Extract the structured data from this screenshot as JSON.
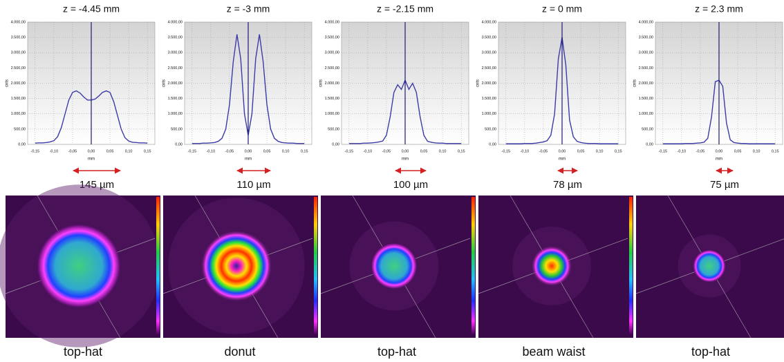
{
  "chart_data": [
    {
      "type": "line",
      "title": "z = -4.45 mm",
      "xlabel": "mm",
      "ylabel": "cnts",
      "color": "#3a3aa8",
      "grid": true,
      "annotations": [
        "145 µm",
        "top-hat"
      ],
      "x": [
        -0.15,
        -0.14,
        -0.13,
        -0.12,
        -0.11,
        -0.1,
        -0.09,
        -0.08,
        -0.07,
        -0.06,
        -0.05,
        -0.04,
        -0.03,
        -0.02,
        -0.01,
        0,
        0.01,
        0.02,
        0.03,
        0.04,
        0.05,
        0.06,
        0.07,
        0.08,
        0.09,
        0.1,
        0.11,
        0.12,
        0.13,
        0.14,
        0.15
      ],
      "values": [
        40,
        50,
        50,
        60,
        80,
        120,
        250,
        550,
        1000,
        1450,
        1700,
        1750,
        1680,
        1550,
        1450,
        1450,
        1480,
        1580,
        1700,
        1750,
        1700,
        1400,
        950,
        500,
        220,
        110,
        70,
        60,
        50,
        50,
        40
      ],
      "xlim": [
        -0.17,
        0.17
      ],
      "ylim": [
        0,
        4000
      ],
      "xticks": [
        {
          "value": -0.15,
          "label": "-0,15"
        },
        {
          "value": -0.1,
          "label": "-0,10"
        },
        {
          "value": -0.05,
          "label": "-0,05"
        },
        {
          "value": 0,
          "label": "0,00"
        },
        {
          "value": 0.05,
          "label": "0,05"
        },
        {
          "value": 0.1,
          "label": "0,10"
        },
        {
          "value": 0.15,
          "label": "0,15"
        }
      ],
      "yticks": [
        {
          "value": 0,
          "label": "0,00"
        },
        {
          "value": 500,
          "label": "500,00"
        },
        {
          "value": 1000,
          "label": "1.000,00"
        },
        {
          "value": 1500,
          "label": "1.500,00"
        },
        {
          "value": 2000,
          "label": "2.000,00"
        },
        {
          "value": 2500,
          "label": "2.500,00"
        },
        {
          "value": 3000,
          "label": "3.000,00"
        },
        {
          "value": 3500,
          "label": "3.500,00"
        },
        {
          "value": 4000,
          "label": "4.000,00"
        }
      ]
    },
    {
      "type": "line",
      "title": "z = -3 mm",
      "xlabel": "mm",
      "ylabel": "cnts",
      "color": "#3a3aa8",
      "grid": true,
      "annotations": [
        "110 µm",
        "donut"
      ],
      "x": [
        -0.15,
        -0.14,
        -0.13,
        -0.12,
        -0.11,
        -0.1,
        -0.09,
        -0.08,
        -0.07,
        -0.06,
        -0.05,
        -0.04,
        -0.03,
        -0.02,
        -0.01,
        0,
        0.01,
        0.02,
        0.03,
        0.04,
        0.05,
        0.06,
        0.07,
        0.08,
        0.09,
        0.1,
        0.11,
        0.12,
        0.13,
        0.14,
        0.15
      ],
      "values": [
        30,
        30,
        30,
        40,
        40,
        50,
        60,
        100,
        200,
        500,
        1300,
        2700,
        3600,
        2800,
        1000,
        300,
        1000,
        2800,
        3600,
        2700,
        1300,
        500,
        200,
        100,
        60,
        50,
        40,
        40,
        30,
        30,
        30
      ],
      "xlim": [
        -0.17,
        0.17
      ],
      "ylim": [
        0,
        4000
      ],
      "xticks": [
        {
          "value": -0.15,
          "label": "-0,15"
        },
        {
          "value": -0.1,
          "label": "-0,10"
        },
        {
          "value": -0.05,
          "label": "-0,05"
        },
        {
          "value": 0,
          "label": "0,00"
        },
        {
          "value": 0.05,
          "label": "0,05"
        },
        {
          "value": 0.1,
          "label": "0,10"
        },
        {
          "value": 0.15,
          "label": "0,15"
        }
      ],
      "yticks": [
        {
          "value": 0,
          "label": "0,00"
        },
        {
          "value": 500,
          "label": "500,00"
        },
        {
          "value": 1000,
          "label": "1.000,00"
        },
        {
          "value": 1500,
          "label": "1.500,00"
        },
        {
          "value": 2000,
          "label": "2.000,00"
        },
        {
          "value": 2500,
          "label": "2.500,00"
        },
        {
          "value": 3000,
          "label": "3.000,00"
        },
        {
          "value": 3500,
          "label": "3.500,00"
        },
        {
          "value": 4000,
          "label": "4.000,00"
        }
      ]
    },
    {
      "type": "line",
      "title": "z = -2.15 mm",
      "xlabel": "mm",
      "ylabel": "cnts",
      "color": "#3a3aa8",
      "grid": true,
      "annotations": [
        "100 µm",
        "top-hat"
      ],
      "x": [
        -0.15,
        -0.14,
        -0.13,
        -0.12,
        -0.11,
        -0.1,
        -0.09,
        -0.08,
        -0.07,
        -0.06,
        -0.05,
        -0.04,
        -0.03,
        -0.02,
        -0.01,
        0,
        0.01,
        0.02,
        0.03,
        0.04,
        0.05,
        0.06,
        0.07,
        0.08,
        0.09,
        0.1,
        0.11,
        0.12,
        0.13,
        0.14,
        0.15
      ],
      "values": [
        30,
        30,
        30,
        30,
        40,
        40,
        50,
        60,
        80,
        110,
        300,
        900,
        1700,
        1950,
        1800,
        2100,
        1800,
        2000,
        1700,
        900,
        300,
        100,
        70,
        50,
        40,
        40,
        30,
        30,
        30,
        30,
        30
      ],
      "xlim": [
        -0.17,
        0.17
      ],
      "ylim": [
        0,
        4000
      ],
      "xticks": [
        {
          "value": -0.15,
          "label": "-0,15"
        },
        {
          "value": -0.1,
          "label": "-0,10"
        },
        {
          "value": -0.05,
          "label": "-0,05"
        },
        {
          "value": 0,
          "label": "0,00"
        },
        {
          "value": 0.05,
          "label": "0,05"
        },
        {
          "value": 0.1,
          "label": "0,10"
        },
        {
          "value": 0.15,
          "label": "0,15"
        }
      ],
      "yticks": [
        {
          "value": 0,
          "label": "0,00"
        },
        {
          "value": 500,
          "label": "500,00"
        },
        {
          "value": 1000,
          "label": "1.000,00"
        },
        {
          "value": 1500,
          "label": "1.500,00"
        },
        {
          "value": 2000,
          "label": "2.000,00"
        },
        {
          "value": 2500,
          "label": "2.500,00"
        },
        {
          "value": 3000,
          "label": "3.000,00"
        },
        {
          "value": 3500,
          "label": "3.500,00"
        },
        {
          "value": 4000,
          "label": "4.000,00"
        }
      ]
    },
    {
      "type": "line",
      "title": "z = 0 mm",
      "xlabel": "mm",
      "ylabel": "cnts",
      "color": "#3a3aa8",
      "grid": true,
      "annotations": [
        "78 µm",
        "beam waist"
      ],
      "x": [
        -0.15,
        -0.14,
        -0.13,
        -0.12,
        -0.11,
        -0.1,
        -0.09,
        -0.08,
        -0.07,
        -0.06,
        -0.05,
        -0.04,
        -0.03,
        -0.02,
        -0.01,
        0,
        0.01,
        0.02,
        0.03,
        0.04,
        0.05,
        0.06,
        0.07,
        0.08,
        0.09,
        0.1,
        0.11,
        0.12,
        0.13,
        0.14,
        0.15
      ],
      "values": [
        20,
        20,
        20,
        20,
        20,
        30,
        30,
        30,
        40,
        60,
        80,
        120,
        300,
        1000,
        2800,
        3500,
        2600,
        800,
        250,
        100,
        60,
        40,
        30,
        30,
        30,
        20,
        20,
        20,
        20,
        20,
        20
      ],
      "xlim": [
        -0.17,
        0.17
      ],
      "ylim": [
        0,
        4000
      ],
      "xticks": [
        {
          "value": -0.15,
          "label": "-0,15"
        },
        {
          "value": -0.1,
          "label": "-0,10"
        },
        {
          "value": -0.05,
          "label": "-0,05"
        },
        {
          "value": 0,
          "label": "0,00"
        },
        {
          "value": 0.05,
          "label": "0,05"
        },
        {
          "value": 0.1,
          "label": "0,10"
        },
        {
          "value": 0.15,
          "label": "0,15"
        }
      ],
      "yticks": [
        {
          "value": 0,
          "label": "0,00"
        },
        {
          "value": 500,
          "label": "500,00"
        },
        {
          "value": 1000,
          "label": "1.000,00"
        },
        {
          "value": 1500,
          "label": "1.500,00"
        },
        {
          "value": 2000,
          "label": "2.000,00"
        },
        {
          "value": 2500,
          "label": "2.500,00"
        },
        {
          "value": 3000,
          "label": "3.000,00"
        },
        {
          "value": 3500,
          "label": "3.500,00"
        },
        {
          "value": 4000,
          "label": "4.000,00"
        }
      ]
    },
    {
      "type": "line",
      "title": "z = 2.3 mm",
      "xlabel": "mm",
      "ylabel": "cnts",
      "color": "#3a3aa8",
      "grid": true,
      "annotations": [
        "75 µm",
        "top-hat"
      ],
      "x": [
        -0.15,
        -0.14,
        -0.13,
        -0.12,
        -0.11,
        -0.1,
        -0.09,
        -0.08,
        -0.07,
        -0.06,
        -0.05,
        -0.04,
        -0.03,
        -0.02,
        -0.01,
        0,
        0.01,
        0.02,
        0.03,
        0.04,
        0.05,
        0.06,
        0.07,
        0.08,
        0.09,
        0.1,
        0.11,
        0.12,
        0.13,
        0.14,
        0.15
      ],
      "values": [
        20,
        20,
        20,
        20,
        20,
        20,
        30,
        30,
        30,
        40,
        50,
        70,
        200,
        900,
        2050,
        2100,
        1900,
        700,
        150,
        60,
        40,
        30,
        30,
        20,
        20,
        20,
        20,
        20,
        20,
        20,
        20
      ],
      "xlim": [
        -0.17,
        0.17
      ],
      "ylim": [
        0,
        4000
      ],
      "xticks": [
        {
          "value": -0.15,
          "label": "-0,15"
        },
        {
          "value": -0.1,
          "label": "-0,10"
        },
        {
          "value": -0.05,
          "label": "-0,05"
        },
        {
          "value": 0,
          "label": "0,00"
        },
        {
          "value": 0.05,
          "label": "0,05"
        },
        {
          "value": 0.1,
          "label": "0,10"
        },
        {
          "value": 0.15,
          "label": "0,15"
        }
      ],
      "yticks": [
        {
          "value": 0,
          "label": "0,00"
        },
        {
          "value": 500,
          "label": "500,00"
        },
        {
          "value": 1000,
          "label": "1.000,00"
        },
        {
          "value": 1500,
          "label": "1.500,00"
        },
        {
          "value": 2000,
          "label": "2.000,00"
        },
        {
          "value": 2500,
          "label": "2.500,00"
        },
        {
          "value": 3000,
          "label": "3.000,00"
        },
        {
          "value": 3500,
          "label": "3.500,00"
        },
        {
          "value": 4000,
          "label": "4.000,00"
        }
      ]
    }
  ]
}
